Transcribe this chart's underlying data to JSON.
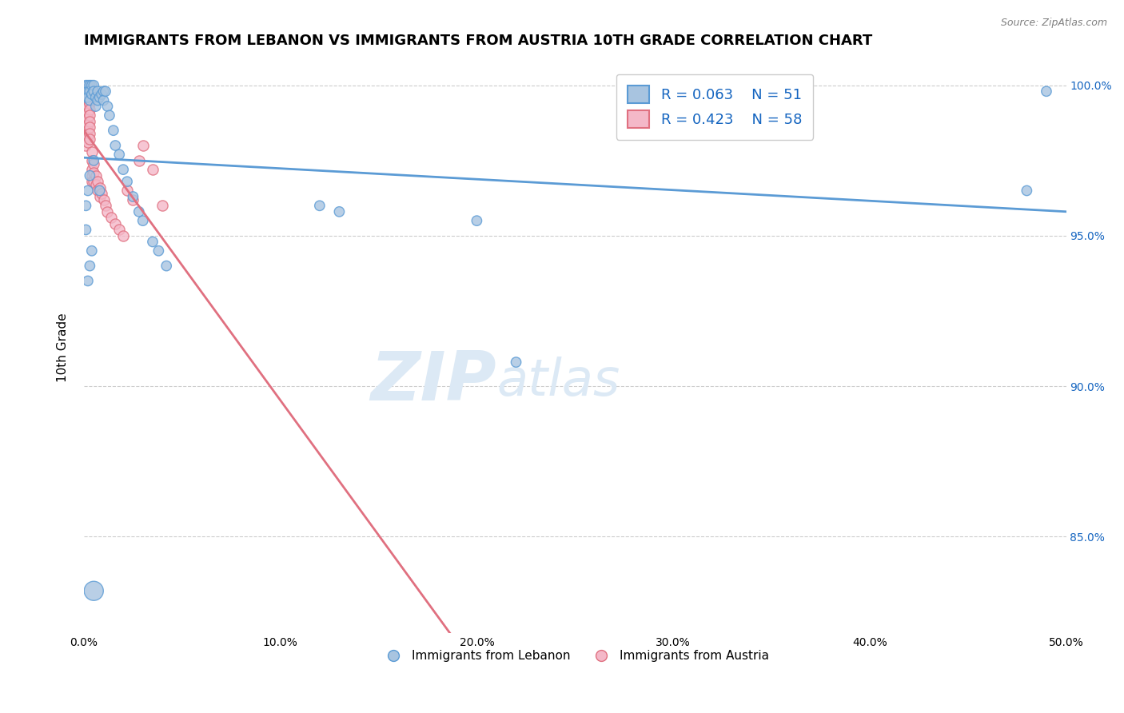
{
  "title": "IMMIGRANTS FROM LEBANON VS IMMIGRANTS FROM AUSTRIA 10TH GRADE CORRELATION CHART",
  "source_text": "Source: ZipAtlas.com",
  "ylabel": "10th Grade",
  "xlim": [
    0.0,
    0.5
  ],
  "ylim": [
    0.818,
    1.008
  ],
  "xtick_labels": [
    "0.0%",
    "10.0%",
    "20.0%",
    "30.0%",
    "40.0%",
    "50.0%"
  ],
  "xtick_values": [
    0.0,
    0.1,
    0.2,
    0.3,
    0.4,
    0.5
  ],
  "ytick_labels": [
    "85.0%",
    "90.0%",
    "95.0%",
    "100.0%"
  ],
  "ytick_values": [
    0.85,
    0.9,
    0.95,
    1.0
  ],
  "legend_R_color": "#1565c0",
  "watermark_zip": "ZIP",
  "watermark_atlas": "atlas",
  "watermark_color": "#dce9f5",
  "background_color": "#ffffff",
  "grid_color": "#cccccc",
  "title_fontsize": 13,
  "axis_label_fontsize": 11,
  "legend_fontsize": 13,
  "series_lebanon": {
    "name": "Immigrants from Lebanon",
    "color": "#a8c4e0",
    "edge_color": "#5b9bd5",
    "R": 0.063,
    "N": 51,
    "x": [
      0.001,
      0.001,
      0.001,
      0.002,
      0.002,
      0.002,
      0.003,
      0.003,
      0.003,
      0.004,
      0.004,
      0.005,
      0.005,
      0.006,
      0.006,
      0.007,
      0.007,
      0.008,
      0.009,
      0.01,
      0.01,
      0.011,
      0.012,
      0.013,
      0.015,
      0.016,
      0.018,
      0.02,
      0.022,
      0.025,
      0.028,
      0.03,
      0.035,
      0.038,
      0.042,
      0.005,
      0.003,
      0.002,
      0.001,
      0.001,
      0.004,
      0.008,
      0.003,
      0.002,
      0.005,
      0.12,
      0.13,
      0.2,
      0.22,
      0.48,
      0.49
    ],
    "y": [
      1.0,
      0.998,
      0.996,
      1.0,
      0.998,
      0.996,
      1.0,
      0.998,
      0.995,
      1.0,
      0.997,
      1.0,
      0.998,
      0.996,
      0.993,
      0.998,
      0.995,
      0.996,
      0.997,
      0.998,
      0.995,
      0.998,
      0.993,
      0.99,
      0.985,
      0.98,
      0.977,
      0.972,
      0.968,
      0.963,
      0.958,
      0.955,
      0.948,
      0.945,
      0.94,
      0.975,
      0.97,
      0.965,
      0.96,
      0.952,
      0.945,
      0.965,
      0.94,
      0.935,
      0.832,
      0.96,
      0.958,
      0.955,
      0.908,
      0.965,
      0.998
    ],
    "sizes": [
      80,
      80,
      80,
      80,
      80,
      80,
      80,
      80,
      80,
      80,
      80,
      80,
      80,
      80,
      80,
      80,
      80,
      80,
      80,
      80,
      80,
      80,
      80,
      80,
      80,
      80,
      80,
      80,
      80,
      80,
      80,
      80,
      80,
      80,
      80,
      80,
      80,
      80,
      80,
      80,
      80,
      80,
      80,
      80,
      300,
      80,
      80,
      80,
      80,
      80,
      80
    ]
  },
  "series_austria": {
    "name": "Immigrants from Austria",
    "color": "#f4b8c8",
    "edge_color": "#e07080",
    "R": 0.423,
    "N": 58,
    "x": [
      0.001,
      0.001,
      0.001,
      0.001,
      0.001,
      0.001,
      0.001,
      0.001,
      0.001,
      0.001,
      0.002,
      0.002,
      0.002,
      0.002,
      0.002,
      0.002,
      0.002,
      0.002,
      0.002,
      0.002,
      0.003,
      0.003,
      0.003,
      0.003,
      0.003,
      0.003,
      0.003,
      0.003,
      0.003,
      0.003,
      0.004,
      0.004,
      0.004,
      0.004,
      0.004,
      0.005,
      0.005,
      0.005,
      0.006,
      0.006,
      0.007,
      0.007,
      0.008,
      0.008,
      0.009,
      0.01,
      0.011,
      0.012,
      0.014,
      0.016,
      0.018,
      0.02,
      0.022,
      0.025,
      0.028,
      0.03,
      0.035,
      0.04
    ],
    "y": [
      0.998,
      0.996,
      0.994,
      0.992,
      0.99,
      0.988,
      0.986,
      0.984,
      0.982,
      0.98,
      0.999,
      0.997,
      0.995,
      0.993,
      0.991,
      0.989,
      0.987,
      0.985,
      0.983,
      0.981,
      1.0,
      0.998,
      0.996,
      0.994,
      0.992,
      0.99,
      0.988,
      0.986,
      0.984,
      0.982,
      0.978,
      0.975,
      0.972,
      0.97,
      0.968,
      0.974,
      0.971,
      0.968,
      0.97,
      0.967,
      0.968,
      0.965,
      0.966,
      0.963,
      0.964,
      0.962,
      0.96,
      0.958,
      0.956,
      0.954,
      0.952,
      0.95,
      0.965,
      0.962,
      0.975,
      0.98,
      0.972,
      0.96
    ]
  }
}
